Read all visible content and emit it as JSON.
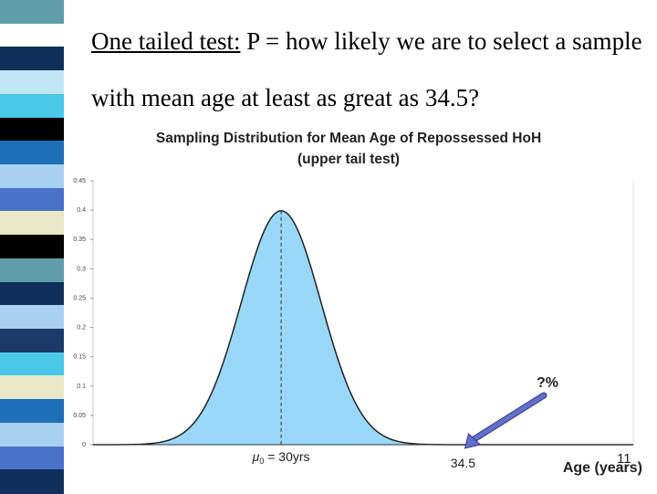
{
  "slide": {
    "title_lead": "One tailed test:",
    "title_rest": " P = how likely we are to select a sample with mean age at least as great as 34.5?",
    "slide_number": "11",
    "stripe_colors": [
      "#5f9ea8",
      "#ffffff",
      "#0f2f5a",
      "#c3e6f6",
      "#4bc8e8",
      "#000000",
      "#1d6fb8",
      "#a8d0f0",
      "#4a72c8",
      "#e8e8c8",
      "#000000",
      "#5f9ea8",
      "#0f2f5a",
      "#a8d0f0",
      "#1a3a6a",
      "#4bc8e8",
      "#e8e8c8",
      "#1d6fb8",
      "#a8d0f0",
      "#4a72c8",
      "#0f2f5a"
    ]
  },
  "chart_data": {
    "type": "area",
    "title": "Sampling Distribution for Mean Age of Repossessed HoH",
    "subtitle": "(upper tail test)",
    "distribution": "normal",
    "mean": 30,
    "sd": 1.0,
    "x_range": [
      25.3,
      38.8
    ],
    "ylim": [
      0,
      0.45
    ],
    "yticks": [
      {
        "value": 0,
        "label": "0"
      },
      {
        "value": 0.05,
        "label": "0.05"
      },
      {
        "value": 0.1,
        "label": "0.1"
      },
      {
        "value": 0.15,
        "label": "0.15"
      },
      {
        "value": 0.2,
        "label": "0.2"
      },
      {
        "value": 0.25,
        "label": "0.25"
      },
      {
        "value": 0.3,
        "label": "0.3"
      },
      {
        "value": 0.35,
        "label": "0.35"
      },
      {
        "value": 0.4,
        "label": "0.4"
      },
      {
        "value": 0.45,
        "label": "0.45"
      }
    ],
    "mean_label_prefix": "μ",
    "mean_label_subscript": "0",
    "mean_label_suffix": " = 30yrs",
    "critical_value": 34.5,
    "critical_label": "34.5",
    "xlabel": "Age (years)",
    "tail_annotation": "?%",
    "fill_color": "#99d8f8",
    "tail_color": "#8b1a4a",
    "arrow_color": "#6070c8"
  }
}
